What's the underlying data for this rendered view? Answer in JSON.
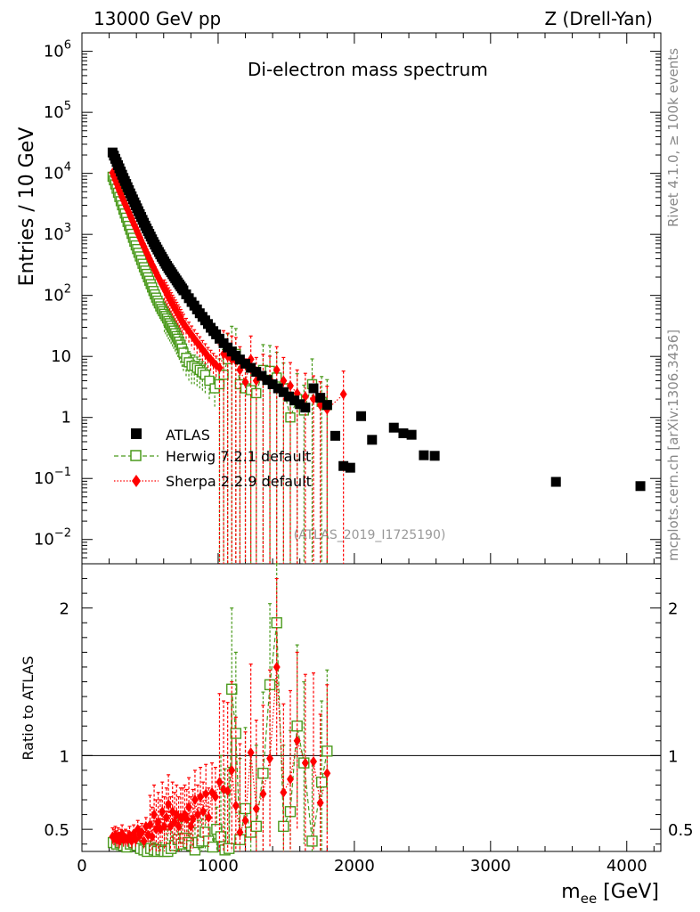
{
  "header": {
    "left": "13000 GeV pp",
    "right": "Z (Drell-Yan)",
    "rivet": "Rivet 4.1.0, ≥ 100k events",
    "site": "mcplots.cern.ch [arXiv:1306.3436]"
  },
  "colors": {
    "atlas": "#000000",
    "herwig": "#4a9a1c",
    "sherpa": "#ff0000",
    "watermark": "#999999"
  },
  "chart_data": [
    {
      "type": "scatter",
      "title": "Di-electron mass spectrum",
      "watermark": "(ATLAS_2019_I1725190)",
      "ylabel": "Entries / 10 GeV",
      "yscale": "log",
      "xlim": [
        0,
        4250
      ],
      "ylim": [
        0.004,
        2000000
      ],
      "y_tick_labels": [
        "10^-2",
        "10^-1",
        "1",
        "10",
        "10^2",
        "10^3",
        "10^4",
        "10^5",
        "10^6"
      ],
      "legend": [
        "ATLAS",
        "Herwig 7.2.1 default",
        "Sherpa 2.2.9 default"
      ],
      "series": [
        {
          "name": "ATLAS",
          "x": [
            225,
            235,
            245,
            255,
            265,
            275,
            285,
            295,
            305,
            315,
            325,
            335,
            345,
            355,
            365,
            375,
            385,
            395,
            405,
            415,
            425,
            435,
            445,
            455,
            465,
            475,
            485,
            495,
            505,
            515,
            525,
            535,
            545,
            555,
            565,
            575,
            585,
            595,
            605,
            615,
            625,
            635,
            645,
            655,
            665,
            675,
            685,
            695,
            705,
            715,
            725,
            735,
            745,
            765,
            785,
            805,
            825,
            845,
            865,
            885,
            905,
            925,
            945,
            965,
            985,
            1010,
            1040,
            1070,
            1100,
            1130,
            1160,
            1200,
            1240,
            1280,
            1320,
            1360,
            1400,
            1440,
            1480,
            1520,
            1560,
            1600,
            1640,
            1700,
            1750,
            1800,
            1860,
            1920,
            1970,
            2050,
            2130,
            2290,
            2360,
            2420,
            2510,
            2590,
            3480,
            4100
          ],
          "y": [
            22000,
            19500,
            17300,
            15300,
            13600,
            12100,
            10700,
            9500,
            8400,
            7500,
            6700,
            5950,
            5300,
            4700,
            4200,
            3750,
            3350,
            3000,
            2680,
            2400,
            2150,
            1930,
            1730,
            1550,
            1390,
            1250,
            1130,
            1020,
            920,
            830,
            750,
            680,
            620,
            565,
            515,
            470,
            430,
            395,
            360,
            330,
            305,
            280,
            260,
            240,
            222,
            205,
            190,
            176,
            163,
            151,
            140,
            130,
            121,
            104,
            90,
            78,
            68,
            59,
            51,
            44.5,
            39,
            34,
            29.5,
            26,
            23,
            19.5,
            16.5,
            14,
            12,
            10.3,
            8.9,
            7.6,
            6.5,
            5.6,
            4.8,
            4.1,
            3.5,
            3.0,
            2.6,
            2.2,
            1.9,
            1.65,
            1.45,
            3.0,
            2.1,
            1.6,
            0.5,
            0.16,
            0.15,
            1.05,
            0.43,
            0.68,
            0.55,
            0.52,
            0.24,
            0.235,
            0.088,
            0.075
          ]
        },
        {
          "name": "Herwig 7.2.1 default",
          "x": [
            225,
            235,
            245,
            255,
            265,
            275,
            285,
            295,
            305,
            315,
            325,
            335,
            345,
            355,
            365,
            375,
            385,
            395,
            405,
            415,
            425,
            435,
            445,
            455,
            465,
            475,
            485,
            495,
            505,
            515,
            525,
            535,
            545,
            555,
            565,
            575,
            585,
            595,
            605,
            615,
            625,
            635,
            645,
            655,
            665,
            675,
            685,
            695,
            705,
            715,
            725,
            735,
            745,
            765,
            785,
            805,
            825,
            845,
            865,
            885,
            905,
            935,
            975,
            1010,
            1040,
            1070,
            1100,
            1130,
            1160,
            1200,
            1240,
            1280,
            1330,
            1380,
            1430,
            1480,
            1530,
            1580,
            1630,
            1690,
            1760,
            1800
          ],
          "y": [
            8800,
            7700,
            6600,
            5600,
            4800,
            4100,
            3500,
            3000,
            2550,
            2200,
            1880,
            1600,
            1380,
            1190,
            1020,
            880,
            760,
            660,
            575,
            500,
            435,
            380,
            330,
            290,
            255,
            225,
            198,
            174,
            153,
            135,
            118,
            104,
            92,
            82,
            74,
            66,
            60,
            55,
            50,
            46,
            42,
            38,
            35,
            32,
            29,
            26.5,
            24,
            21.5,
            19.5,
            17.5,
            15.5,
            13.5,
            11.5,
            9.5,
            8,
            7,
            7,
            6.5,
            6,
            5.5,
            5,
            4,
            3,
            3.5,
            5,
            9.0,
            12.0,
            11.0,
            3.5,
            3.0,
            2.8,
            2.5,
            6.0,
            5.8,
            4.5,
            3.0,
            1.0,
            2.0,
            1.3,
            3.5,
            1.8,
            1.6
          ]
        },
        {
          "name": "Sherpa 2.2.9 default",
          "x": [
            225,
            235,
            245,
            255,
            265,
            275,
            285,
            295,
            305,
            315,
            325,
            335,
            345,
            355,
            365,
            375,
            385,
            395,
            405,
            415,
            425,
            435,
            445,
            455,
            465,
            475,
            485,
            495,
            505,
            515,
            525,
            535,
            545,
            555,
            565,
            575,
            585,
            595,
            605,
            615,
            625,
            635,
            645,
            655,
            665,
            675,
            685,
            695,
            705,
            715,
            725,
            735,
            745,
            765,
            785,
            805,
            825,
            845,
            865,
            885,
            905,
            925,
            945,
            965,
            985,
            1010,
            1040,
            1070,
            1100,
            1130,
            1160,
            1200,
            1240,
            1280,
            1330,
            1380,
            1430,
            1480,
            1530,
            1580,
            1640,
            1700,
            1750,
            1800,
            1920
          ],
          "y": [
            10200,
            8900,
            7800,
            6800,
            5900,
            5200,
            4600,
            4050,
            3600,
            3200,
            2850,
            2550,
            2280,
            2030,
            1800,
            1600,
            1420,
            1270,
            1130,
            1000,
            890,
            790,
            700,
            630,
            560,
            500,
            450,
            400,
            360,
            320,
            290,
            260,
            235,
            210,
            190,
            172,
            155,
            140,
            128,
            116,
            105,
            95,
            87,
            79,
            72,
            66,
            60,
            55,
            50,
            46,
            42,
            38,
            35,
            30,
            26,
            22.5,
            19.5,
            17,
            15,
            13,
            11.5,
            10,
            9,
            8,
            7.2,
            6.5,
            11,
            10,
            9,
            8.5,
            6,
            3.8,
            9.0,
            4.0,
            4.5,
            4.2,
            6.0,
            4.0,
            3.3,
            2.5,
            2.2,
            2.0,
            1.6,
            1.35,
            2.4
          ]
        }
      ]
    },
    {
      "type": "scatter",
      "ylabel": "Ratio to ATLAS",
      "xlabel": "m_ee [GeV]",
      "xlim": [
        0,
        4250
      ],
      "ylim": [
        0.35,
        2.3
      ],
      "x_tick_labels": [
        "0",
        "1000",
        "2000",
        "3000",
        "4000"
      ],
      "y_tick_labels": [
        "0.5",
        "1",
        "2"
      ],
      "reference_line": 1,
      "series": [
        {
          "name": "Herwig 7.2.1 default",
          "x": [
            230,
            255,
            280,
            305,
            330,
            355,
            380,
            405,
            430,
            455,
            480,
            505,
            530,
            555,
            580,
            605,
            630,
            655,
            680,
            705,
            730,
            755,
            780,
            805,
            830,
            855,
            880,
            905,
            930,
            960,
            990,
            1020,
            1050,
            1080,
            1100,
            1130,
            1160,
            1200,
            1240,
            1280,
            1330,
            1380,
            1430,
            1480,
            1530,
            1580,
            1630,
            1690,
            1760,
            1800
          ],
          "y": [
            0.41,
            0.4,
            0.41,
            0.39,
            0.38,
            0.4,
            0.41,
            0.39,
            0.37,
            0.36,
            0.35,
            0.37,
            0.36,
            0.35,
            0.36,
            0.35,
            0.35,
            0.37,
            0.39,
            0.43,
            0.4,
            0.44,
            0.41,
            0.39,
            0.36,
            0.41,
            0.42,
            0.48,
            0.42,
            0.38,
            0.5,
            0.45,
            0.36,
            0.37,
            1.45,
            1.15,
            0.43,
            0.64,
            0.48,
            0.52,
            0.88,
            1.48,
            1.9,
            0.52,
            0.62,
            1.2,
            0.95,
            0.42,
            0.82,
            1.03
          ]
        },
        {
          "name": "Sherpa 2.2.9 default",
          "x": [
            225,
            235,
            245,
            255,
            265,
            275,
            285,
            295,
            305,
            320,
            335,
            350,
            365,
            380,
            395,
            410,
            425,
            440,
            455,
            470,
            485,
            500,
            515,
            530,
            545,
            560,
            575,
            590,
            605,
            620,
            635,
            650,
            665,
            680,
            695,
            710,
            725,
            740,
            755,
            770,
            785,
            800,
            815,
            830,
            850,
            870,
            890,
            910,
            930,
            955,
            980,
            1010,
            1040,
            1070,
            1100,
            1130,
            1160,
            1200,
            1240,
            1280,
            1330,
            1380,
            1430,
            1480,
            1530,
            1580,
            1640,
            1700,
            1750,
            1800
          ],
          "y": [
            0.45,
            0.44,
            0.46,
            0.43,
            0.45,
            0.42,
            0.44,
            0.47,
            0.43,
            0.44,
            0.43,
            0.46,
            0.42,
            0.47,
            0.43,
            0.5,
            0.46,
            0.48,
            0.42,
            0.52,
            0.46,
            0.53,
            0.45,
            0.6,
            0.5,
            0.55,
            0.5,
            0.62,
            0.52,
            0.58,
            0.67,
            0.52,
            0.62,
            0.55,
            0.6,
            0.52,
            0.58,
            0.58,
            0.6,
            0.57,
            0.65,
            0.52,
            0.57,
            0.7,
            0.6,
            0.72,
            0.62,
            0.74,
            0.58,
            0.75,
            0.72,
            0.82,
            0.77,
            0.76,
            0.9,
            0.66,
            0.48,
            0.56,
            1.02,
            0.64,
            0.74,
            0.98,
            1.6,
            0.75,
            0.84,
            1.1,
            0.95,
            0.96,
            0.68,
            0.88
          ]
        }
      ]
    }
  ]
}
